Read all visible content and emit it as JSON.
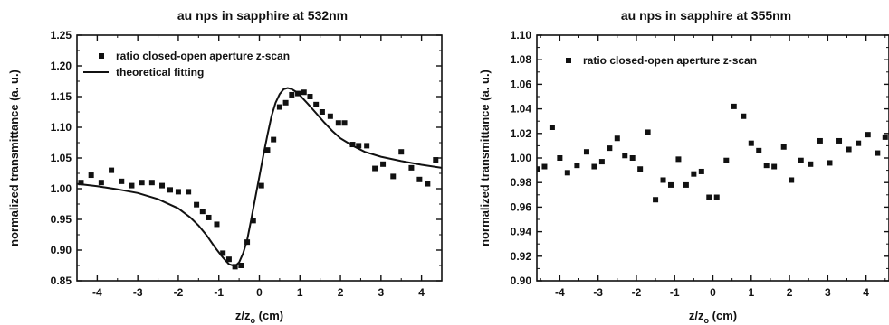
{
  "chart_data": [
    {
      "type": "scatter",
      "title": "au nps in sapphire at 532nm",
      "xlabel_main": "z/z",
      "xlabel_sub": "o",
      "xlabel_unit": " (cm)",
      "ylabel": "normalized transmittance (a. u.)",
      "xlim": [
        -4.5,
        4.5
      ],
      "ylim": [
        0.85,
        1.25
      ],
      "xticks": [
        "-4",
        "-3",
        "-2",
        "-1",
        "0",
        "1",
        "2",
        "3",
        "4"
      ],
      "yticks": [
        "0.85",
        "0.90",
        "0.95",
        "1.00",
        "1.05",
        "1.10",
        "1.15",
        "1.20",
        "1.25"
      ],
      "legend": [
        "ratio closed-open aperture z-scan",
        "theoretical fitting"
      ],
      "series": [
        {
          "name": "ratio closed-open aperture z-scan",
          "style": "square-marker",
          "x": [
            -4.4,
            -4.15,
            -3.9,
            -3.65,
            -3.4,
            -3.15,
            -2.9,
            -2.65,
            -2.4,
            -2.2,
            -2.0,
            -1.75,
            -1.55,
            -1.4,
            -1.25,
            -1.05,
            -0.9,
            -0.75,
            -0.6,
            -0.45,
            -0.3,
            -0.15,
            0.05,
            0.2,
            0.35,
            0.5,
            0.65,
            0.8,
            0.95,
            1.1,
            1.25,
            1.4,
            1.55,
            1.75,
            1.95,
            2.1,
            2.3,
            2.45,
            2.65,
            2.85,
            3.05,
            3.3,
            3.5,
            3.75,
            3.95,
            4.15,
            4.35
          ],
          "y": [
            1.01,
            1.022,
            1.01,
            1.03,
            1.012,
            1.005,
            1.01,
            1.01,
            1.005,
            0.998,
            0.995,
            0.995,
            0.974,
            0.963,
            0.953,
            0.942,
            0.895,
            0.885,
            0.873,
            0.875,
            0.913,
            0.948,
            1.005,
            1.063,
            1.08,
            1.133,
            1.14,
            1.153,
            1.155,
            1.157,
            1.15,
            1.137,
            1.125,
            1.118,
            1.107,
            1.107,
            1.072,
            1.07,
            1.07,
            1.033,
            1.04,
            1.02,
            1.06,
            1.034,
            1.015,
            1.008,
            1.047
          ]
        },
        {
          "name": "theoretical fitting",
          "style": "line",
          "x": [
            -4.5,
            -4.0,
            -3.5,
            -3.0,
            -2.5,
            -2.0,
            -1.7,
            -1.5,
            -1.3,
            -1.1,
            -0.9,
            -0.75,
            -0.6,
            -0.5,
            -0.4,
            -0.3,
            -0.2,
            -0.1,
            0.0,
            0.1,
            0.2,
            0.3,
            0.4,
            0.5,
            0.6,
            0.7,
            0.8,
            0.9,
            1.0,
            1.2,
            1.4,
            1.6,
            1.8,
            2.0,
            2.3,
            2.6,
            3.0,
            3.5,
            4.0,
            4.5
          ],
          "y": [
            1.008,
            1.004,
            0.999,
            0.993,
            0.983,
            0.968,
            0.953,
            0.94,
            0.924,
            0.905,
            0.888,
            0.877,
            0.874,
            0.88,
            0.895,
            0.917,
            0.95,
            0.985,
            1.02,
            1.055,
            1.088,
            1.118,
            1.14,
            1.154,
            1.162,
            1.164,
            1.162,
            1.158,
            1.152,
            1.138,
            1.123,
            1.108,
            1.094,
            1.082,
            1.07,
            1.06,
            1.052,
            1.045,
            1.039,
            1.034
          ]
        }
      ]
    },
    {
      "type": "scatter",
      "title": "au nps in sapphire at 355nm",
      "xlabel_main": "z/z",
      "xlabel_sub": "o",
      "xlabel_unit": " (cm)",
      "ylabel": "normalized transmittance (a. u.)",
      "xlim": [
        -4.6,
        4.6
      ],
      "ylim": [
        0.9,
        1.1
      ],
      "xticks": [
        "-4",
        "-3",
        "-2",
        "-1",
        "0",
        "1",
        "2",
        "3",
        "4"
      ],
      "yticks": [
        "0.90",
        "0.92",
        "0.94",
        "0.96",
        "0.98",
        "1.00",
        "1.02",
        "1.04",
        "1.06",
        "1.08",
        "1.10"
      ],
      "legend": [
        "ratio closed-open aperture z-scan"
      ],
      "series": [
        {
          "name": "ratio closed-open aperture z-scan",
          "style": "square-marker",
          "x": [
            -4.6,
            -4.4,
            -4.2,
            -4.0,
            -3.8,
            -3.55,
            -3.3,
            -3.1,
            -2.9,
            -2.7,
            -2.5,
            -2.3,
            -2.1,
            -1.9,
            -1.7,
            -1.5,
            -1.3,
            -1.1,
            -0.9,
            -0.7,
            -0.5,
            -0.3,
            -0.1,
            0.1,
            0.35,
            0.55,
            0.8,
            1.0,
            1.2,
            1.4,
            1.6,
            1.85,
            2.05,
            2.3,
            2.55,
            2.8,
            3.05,
            3.3,
            3.55,
            3.8,
            4.05,
            4.3,
            4.5
          ],
          "y": [
            0.991,
            0.993,
            1.025,
            1.0,
            0.988,
            0.994,
            1.005,
            0.993,
            0.997,
            1.008,
            1.016,
            1.002,
            1.0,
            0.991,
            1.021,
            0.966,
            0.982,
            0.978,
            0.999,
            0.978,
            0.987,
            0.989,
            0.968,
            0.968,
            0.998,
            1.042,
            1.034,
            1.012,
            1.006,
            0.994,
            0.993,
            1.009,
            0.982,
            0.998,
            0.995,
            1.014,
            0.996,
            1.014,
            1.007,
            1.012,
            1.019,
            1.004,
            1.017
          ]
        }
      ]
    }
  ]
}
